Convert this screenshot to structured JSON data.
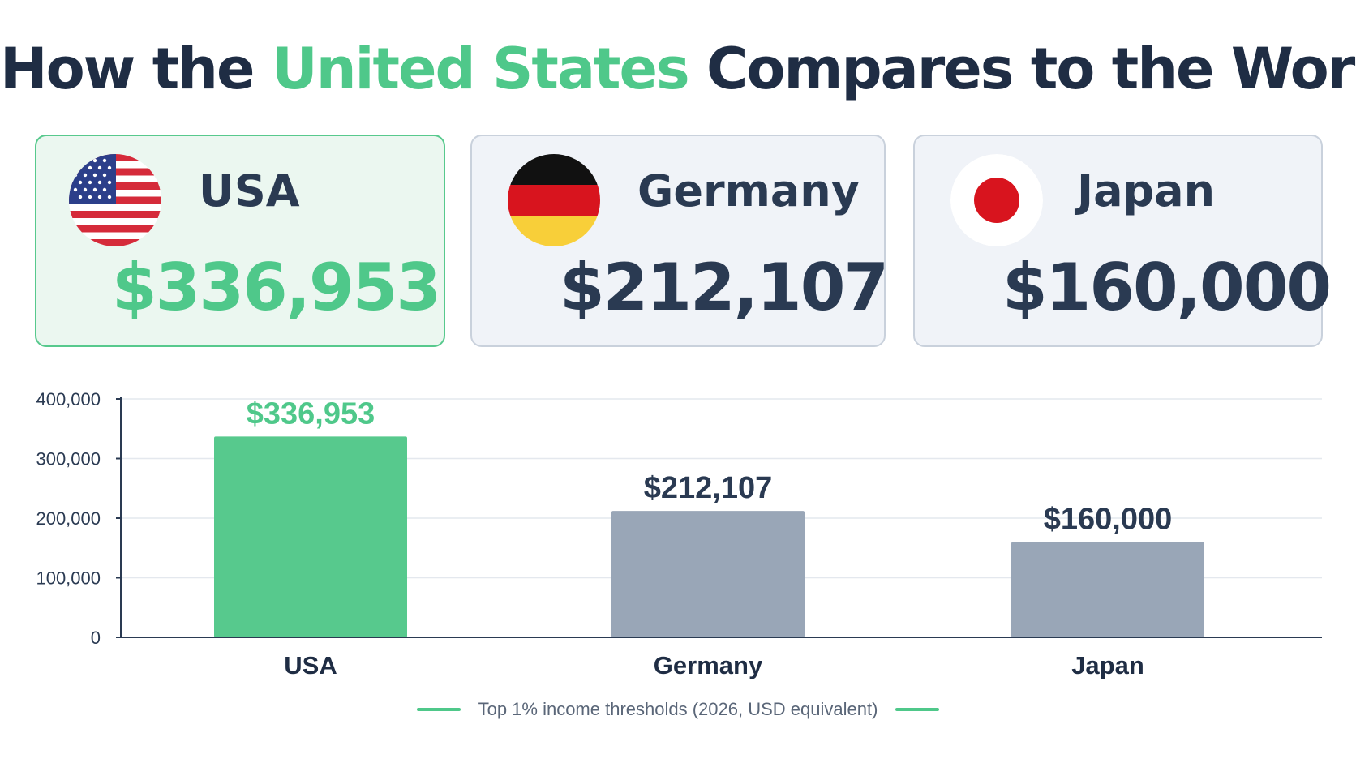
{
  "title": {
    "before": "How the ",
    "highlight": "United States",
    "after": " Compares to the World"
  },
  "cards": [
    {
      "country": "USA",
      "amount": "$336,953",
      "flag_icon": "us-flag-icon",
      "highlighted": true
    },
    {
      "country": "Germany",
      "amount": "$212,107",
      "flag_icon": "germany-flag-icon",
      "highlighted": false
    },
    {
      "country": "Japan",
      "amount": "$160,000",
      "flag_icon": "japan-flag-icon",
      "highlighted": false
    }
  ],
  "chart_data": {
    "type": "bar",
    "categories": [
      "USA",
      "Germany",
      "Japan"
    ],
    "values": [
      336953,
      212107,
      160000
    ],
    "data_labels": [
      "$336,953",
      "$212,107",
      "$160,000"
    ],
    "ylim": [
      0,
      400000
    ],
    "yticks": [
      0,
      100000,
      200000,
      300000,
      400000
    ],
    "ytick_labels": [
      "0",
      "100,000",
      "200,000",
      "300,000",
      "400,000"
    ],
    "grid": true,
    "colors": [
      "#57c98d",
      "#99a6b7",
      "#99a6b7"
    ],
    "label_colors": [
      "#4fc88a",
      "#2a3a52",
      "#2a3a52"
    ]
  },
  "legend": {
    "label": "Top 1% income thresholds (2026, USD equivalent)",
    "color": "#4fc88a"
  }
}
